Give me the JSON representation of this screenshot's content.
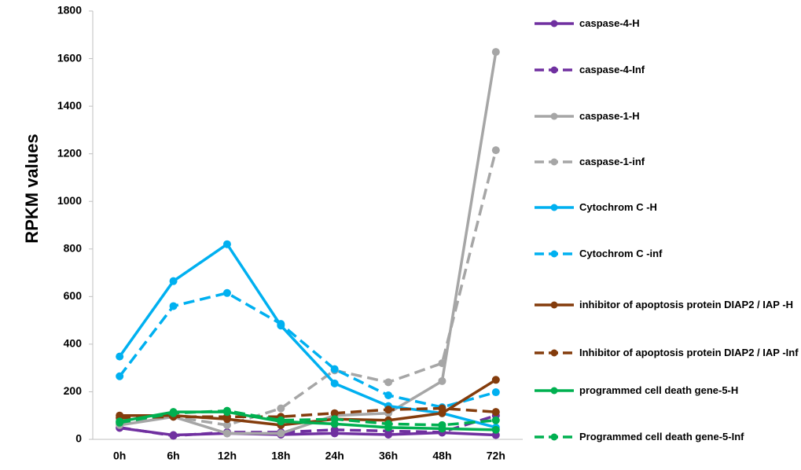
{
  "chart_data": {
    "type": "line",
    "y_label": "RPKM values",
    "categories": [
      "0h",
      "6h",
      "12h",
      "18h",
      "24h",
      "36h",
      "48h",
      "72h"
    ],
    "ylim": [
      0,
      1800
    ],
    "yticks": [
      0,
      200,
      400,
      600,
      800,
      1000,
      1200,
      1400,
      1600,
      1800
    ],
    "grid": false,
    "legend": "right",
    "series": [
      {
        "name": "caspase-4-H",
        "color": "#7030a0",
        "dashed": false,
        "values": [
          48,
          18,
          25,
          20,
          25,
          20,
          28,
          18
        ]
      },
      {
        "name": "caspase-4-Inf",
        "color": "#7030a0",
        "dashed": true,
        "values": [
          50,
          15,
          30,
          30,
          40,
          35,
          30,
          100
        ]
      },
      {
        "name": "caspase-1-H",
        "color": "#a6a6a6",
        "dashed": false,
        "values": [
          60,
          95,
          25,
          25,
          100,
          110,
          245,
          1628
        ]
      },
      {
        "name": "caspase-1-inf",
        "color": "#a6a6a6",
        "dashed": true,
        "values": [
          65,
          95,
          60,
          130,
          290,
          240,
          320,
          1215
        ]
      },
      {
        "name": "Cytochrom C -H",
        "color": "#00b0f0",
        "dashed": false,
        "values": [
          348,
          665,
          820,
          478,
          235,
          140,
          110,
          50
        ]
      },
      {
        "name": "Cytochrom C -inf",
        "color": "#00b0f0",
        "dashed": true,
        "values": [
          265,
          560,
          615,
          485,
          295,
          185,
          135,
          198
        ]
      },
      {
        "name": "inhibitor of apoptosis protein DIAP2 / IAP -H",
        "color": "#843c0c",
        "dashed": false,
        "values": [
          100,
          100,
          85,
          60,
          85,
          80,
          110,
          250
        ]
      },
      {
        "name": "Inhibitor of apoptosis protein DIAP2 / IAP -Inf",
        "color": "#843c0c",
        "dashed": true,
        "values": [
          90,
          95,
          95,
          95,
          110,
          125,
          130,
          115
        ]
      },
      {
        "name": "programmed cell death gene-5-H",
        "color": "#00b050",
        "dashed": false,
        "values": [
          75,
          115,
          115,
          75,
          65,
          50,
          45,
          40
        ]
      },
      {
        "name": "Programmed cell death gene-5-Inf",
        "color": "#00b050",
        "dashed": true,
        "values": [
          70,
          110,
          120,
          80,
          85,
          65,
          60,
          80
        ]
      }
    ]
  }
}
